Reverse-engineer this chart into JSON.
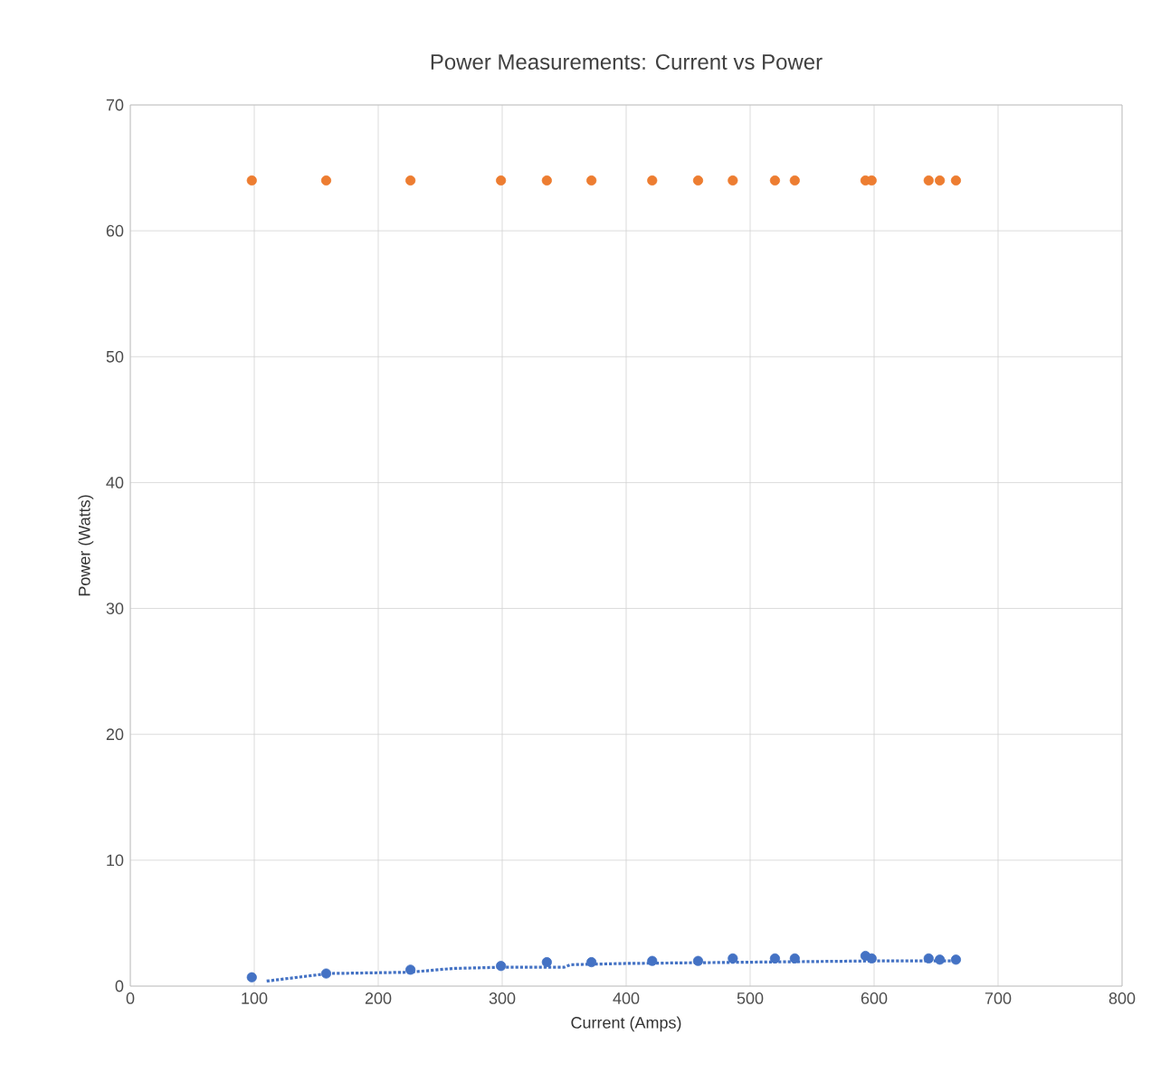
{
  "chart_data": {
    "type": "scatter",
    "title": "Power Measurements: Current vs Power",
    "xlabel": "Current (Amps)",
    "ylabel": "Power (Watts)",
    "x": [
      98,
      158,
      226,
      299,
      336,
      372,
      421,
      458,
      486,
      520,
      536,
      593,
      598,
      644,
      653,
      666
    ],
    "series": [
      {
        "color": "#ed7d31",
        "values": [
          64,
          64,
          64,
          64,
          64,
          64,
          64,
          64,
          64,
          64,
          64,
          64,
          64,
          64,
          64,
          64
        ]
      },
      {
        "color": "#4472c4",
        "values": [
          0.7,
          1.0,
          1.3,
          1.6,
          1.9,
          1.9,
          2.0,
          2.0,
          2.2,
          2.2,
          2.2,
          2.4,
          2.2,
          2.2,
          2.1,
          2.1
        ]
      },
      {
        "type": "line",
        "color": "#4472c4",
        "line_style": "dotted",
        "marker": "none",
        "x": [
          110,
          160,
          225,
          260,
          300,
          350,
          355,
          400,
          500,
          600,
          666
        ],
        "values": [
          0.4,
          1.0,
          1.1,
          1.4,
          1.5,
          1.5,
          1.7,
          1.8,
          1.9,
          2.0,
          2.0
        ]
      }
    ],
    "xlim": [
      0,
      800
    ],
    "xticks": [
      0,
      100,
      200,
      300,
      400,
      500,
      600,
      700,
      800
    ],
    "ylim": [
      0,
      70
    ],
    "yticks": [
      0,
      10,
      20,
      30,
      40,
      50,
      60,
      70
    ],
    "grid": true,
    "marker": "circle"
  }
}
